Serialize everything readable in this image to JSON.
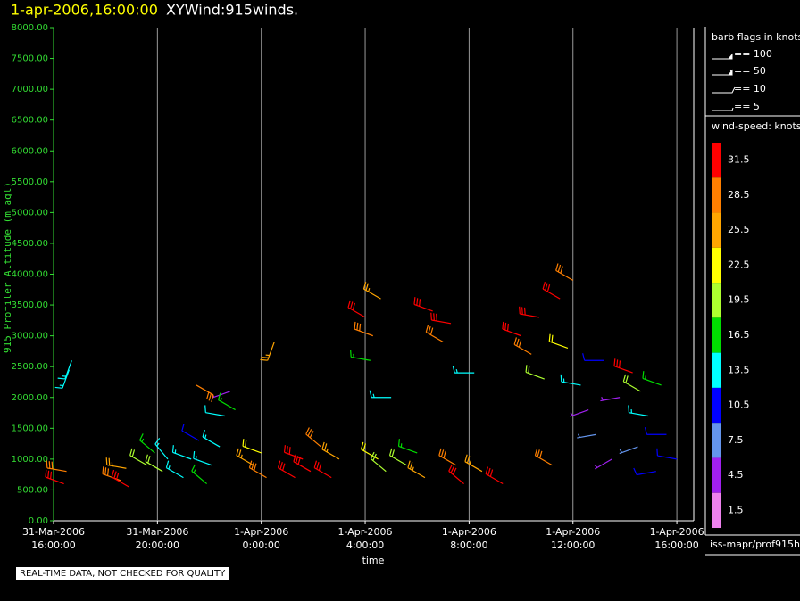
{
  "chart_data": {
    "type": "windbarb",
    "title_time": "1-apr-2006,16:00:00",
    "title": "XYWind:915winds.",
    "ylabel": "915 Profiler Altitude (m agl)",
    "xlabel": "time",
    "ylim": [
      0,
      8000
    ],
    "yticks": [
      {
        "value": 0,
        "label": "0.00"
      },
      {
        "value": 500,
        "label": "500.00"
      },
      {
        "value": 1000,
        "label": "1000.00"
      },
      {
        "value": 1500,
        "label": "1500.00"
      },
      {
        "value": 2000,
        "label": "2000.00"
      },
      {
        "value": 2500,
        "label": "2500.00"
      },
      {
        "value": 3000,
        "label": "3000.00"
      },
      {
        "value": 3500,
        "label": "3500.00"
      },
      {
        "value": 4000,
        "label": "4000.00"
      },
      {
        "value": 4500,
        "label": "4500.00"
      },
      {
        "value": 5000,
        "label": "5000.00"
      },
      {
        "value": 5500,
        "label": "5500.00"
      },
      {
        "value": 6000,
        "label": "6000.00"
      },
      {
        "value": 6500,
        "label": "6500.00"
      },
      {
        "value": 7000,
        "label": "7000.00"
      },
      {
        "value": 7500,
        "label": "7500.00"
      },
      {
        "value": 8000,
        "label": "8000.00"
      }
    ],
    "xlim": [
      0,
      24.65
    ],
    "xticks": [
      {
        "value": 0,
        "label": "31-Mar-2006\n16:00:00"
      },
      {
        "value": 4,
        "label": "31-Mar-2006\n20:00:00"
      },
      {
        "value": 8,
        "label": "1-Apr-2006\n0:00:00"
      },
      {
        "value": 12,
        "label": "1-Apr-2006\n4:00:00"
      },
      {
        "value": 16,
        "label": "1-Apr-2006\n8:00:00"
      },
      {
        "value": 20,
        "label": "1-Apr-2006\n12:00:00"
      },
      {
        "value": 24,
        "label": "1-Apr-2006\n16:00:00"
      }
    ],
    "grid": true,
    "barb_legend": {
      "title": "barb flags in knots",
      "entries": [
        "== 100",
        "== 50",
        "== 10",
        "== 5"
      ]
    },
    "colorbar": {
      "title": "wind-speed: knots",
      "levels": [
        31.5,
        28.5,
        25.5,
        22.5,
        19.5,
        16.5,
        13.5,
        10.5,
        7.5,
        4.5,
        1.5
      ],
      "colors": [
        "#ff0000",
        "#ff7f00",
        "#ffa500",
        "#ffff00",
        "#adff2f",
        "#00dd00",
        "#00ffff",
        "#0000ff",
        "#6495ed",
        "#a020f0",
        "#ee82ee"
      ]
    },
    "source": "iss-mapr/prof915h",
    "note": "REAL-TIME DATA, NOT CHECKED FOR QUALITY",
    "barbs": [
      {
        "time": 0.4,
        "altitude": 600,
        "speed": 31,
        "direction": 290
      },
      {
        "time": 0.5,
        "altitude": 800,
        "speed": 28,
        "direction": 280
      },
      {
        "time": 0.6,
        "altitude": 2450,
        "speed": 13,
        "direction": 200
      },
      {
        "time": 0.7,
        "altitude": 2600,
        "speed": 13,
        "direction": 200
      },
      {
        "time": 2.6,
        "altitude": 650,
        "speed": 28,
        "direction": 290
      },
      {
        "time": 2.8,
        "altitude": 850,
        "speed": 25,
        "direction": 280
      },
      {
        "time": 2.9,
        "altitude": 550,
        "speed": 31,
        "direction": 300
      },
      {
        "time": 3.6,
        "altitude": 900,
        "speed": 20,
        "direction": 300
      },
      {
        "time": 3.9,
        "altitude": 1100,
        "speed": 17,
        "direction": 310
      },
      {
        "time": 4.2,
        "altitude": 800,
        "speed": 19,
        "direction": 300
      },
      {
        "time": 4.4,
        "altitude": 1000,
        "speed": 13,
        "direction": 320
      },
      {
        "time": 5.0,
        "altitude": 700,
        "speed": 14,
        "direction": 300
      },
      {
        "time": 5.3,
        "altitude": 1000,
        "speed": 13,
        "direction": 290
      },
      {
        "time": 5.6,
        "altitude": 1300,
        "speed": 10,
        "direction": 300
      },
      {
        "time": 5.9,
        "altitude": 600,
        "speed": 16,
        "direction": 310
      },
      {
        "time": 6.1,
        "altitude": 900,
        "speed": 13,
        "direction": 290
      },
      {
        "time": 6.4,
        "altitude": 1200,
        "speed": 14,
        "direction": 300
      },
      {
        "time": 6.6,
        "altitude": 1700,
        "speed": 12,
        "direction": 280
      },
      {
        "time": 6.8,
        "altitude": 2100,
        "speed": 5,
        "direction": 250
      },
      {
        "time": 7.0,
        "altitude": 1800,
        "speed": 16,
        "direction": 300
      },
      {
        "time": 5.5,
        "altitude": 2200,
        "speed": 28,
        "direction": 120
      },
      {
        "time": 7.7,
        "altitude": 900,
        "speed": 25,
        "direction": 300
      },
      {
        "time": 8.0,
        "altitude": 1100,
        "speed": 22,
        "direction": 290
      },
      {
        "time": 8.2,
        "altitude": 700,
        "speed": 28,
        "direction": 300
      },
      {
        "time": 8.5,
        "altitude": 2900,
        "speed": 26,
        "direction": 200
      },
      {
        "time": 9.3,
        "altitude": 700,
        "speed": 31,
        "direction": 300
      },
      {
        "time": 9.6,
        "altitude": 1000,
        "speed": 31,
        "direction": 290
      },
      {
        "time": 9.9,
        "altitude": 800,
        "speed": 30,
        "direction": 300
      },
      {
        "time": 10.3,
        "altitude": 1200,
        "speed": 28,
        "direction": 310
      },
      {
        "time": 10.7,
        "altitude": 700,
        "speed": 31,
        "direction": 300
      },
      {
        "time": 11.0,
        "altitude": 1000,
        "speed": 25,
        "direction": 300
      },
      {
        "time": 12.0,
        "altitude": 3300,
        "speed": 31,
        "direction": 300
      },
      {
        "time": 12.3,
        "altitude": 3000,
        "speed": 28,
        "direction": 290
      },
      {
        "time": 12.6,
        "altitude": 3600,
        "speed": 26,
        "direction": 300
      },
      {
        "time": 12.2,
        "altitude": 2600,
        "speed": 16,
        "direction": 280
      },
      {
        "time": 12.5,
        "altitude": 1000,
        "speed": 22,
        "direction": 300
      },
      {
        "time": 12.8,
        "altitude": 800,
        "speed": 19,
        "direction": 310
      },
      {
        "time": 13.0,
        "altitude": 2000,
        "speed": 13,
        "direction": 270
      },
      {
        "time": 13.6,
        "altitude": 900,
        "speed": 20,
        "direction": 300
      },
      {
        "time": 14.0,
        "altitude": 1100,
        "speed": 17,
        "direction": 290
      },
      {
        "time": 14.3,
        "altitude": 700,
        "speed": 25,
        "direction": 300
      },
      {
        "time": 14.6,
        "altitude": 3400,
        "speed": 31,
        "direction": 290
      },
      {
        "time": 15.0,
        "altitude": 2900,
        "speed": 29,
        "direction": 300
      },
      {
        "time": 15.3,
        "altitude": 3200,
        "speed": 31,
        "direction": 280
      },
      {
        "time": 15.5,
        "altitude": 900,
        "speed": 28,
        "direction": 300
      },
      {
        "time": 15.8,
        "altitude": 600,
        "speed": 31,
        "direction": 310
      },
      {
        "time": 16.2,
        "altitude": 2400,
        "speed": 14,
        "direction": 270
      },
      {
        "time": 16.5,
        "altitude": 800,
        "speed": 25,
        "direction": 300
      },
      {
        "time": 17.3,
        "altitude": 600,
        "speed": 31,
        "direction": 300
      },
      {
        "time": 18.0,
        "altitude": 3000,
        "speed": 31,
        "direction": 290
      },
      {
        "time": 18.4,
        "altitude": 2700,
        "speed": 28,
        "direction": 300
      },
      {
        "time": 18.7,
        "altitude": 3300,
        "speed": 31,
        "direction": 280
      },
      {
        "time": 18.9,
        "altitude": 2300,
        "speed": 19,
        "direction": 290
      },
      {
        "time": 19.2,
        "altitude": 900,
        "speed": 28,
        "direction": 300
      },
      {
        "time": 19.5,
        "altitude": 3600,
        "speed": 31,
        "direction": 300
      },
      {
        "time": 19.8,
        "altitude": 2800,
        "speed": 22,
        "direction": 290
      },
      {
        "time": 20.0,
        "altitude": 3900,
        "speed": 28,
        "direction": 300
      },
      {
        "time": 20.3,
        "altitude": 2200,
        "speed": 13,
        "direction": 280
      },
      {
        "time": 20.6,
        "altitude": 1800,
        "speed": 5,
        "direction": 250
      },
      {
        "time": 20.9,
        "altitude": 1400,
        "speed": 7,
        "direction": 260
      },
      {
        "time": 21.2,
        "altitude": 2600,
        "speed": 10,
        "direction": 270
      },
      {
        "time": 21.5,
        "altitude": 1000,
        "speed": 4,
        "direction": 240
      },
      {
        "time": 21.8,
        "altitude": 2000,
        "speed": 5,
        "direction": 260
      },
      {
        "time": 22.3,
        "altitude": 2400,
        "speed": 31,
        "direction": 290
      },
      {
        "time": 22.6,
        "altitude": 2100,
        "speed": 19,
        "direction": 300
      },
      {
        "time": 22.9,
        "altitude": 1700,
        "speed": 13,
        "direction": 280
      },
      {
        "time": 22.5,
        "altitude": 1200,
        "speed": 6,
        "direction": 250
      },
      {
        "time": 23.2,
        "altitude": 800,
        "speed": 9,
        "direction": 260
      },
      {
        "time": 23.6,
        "altitude": 1400,
        "speed": 11,
        "direction": 270
      },
      {
        "time": 24.0,
        "altitude": 1000,
        "speed": 10,
        "direction": 280
      },
      {
        "time": 23.4,
        "altitude": 2200,
        "speed": 17,
        "direction": 290
      }
    ]
  }
}
